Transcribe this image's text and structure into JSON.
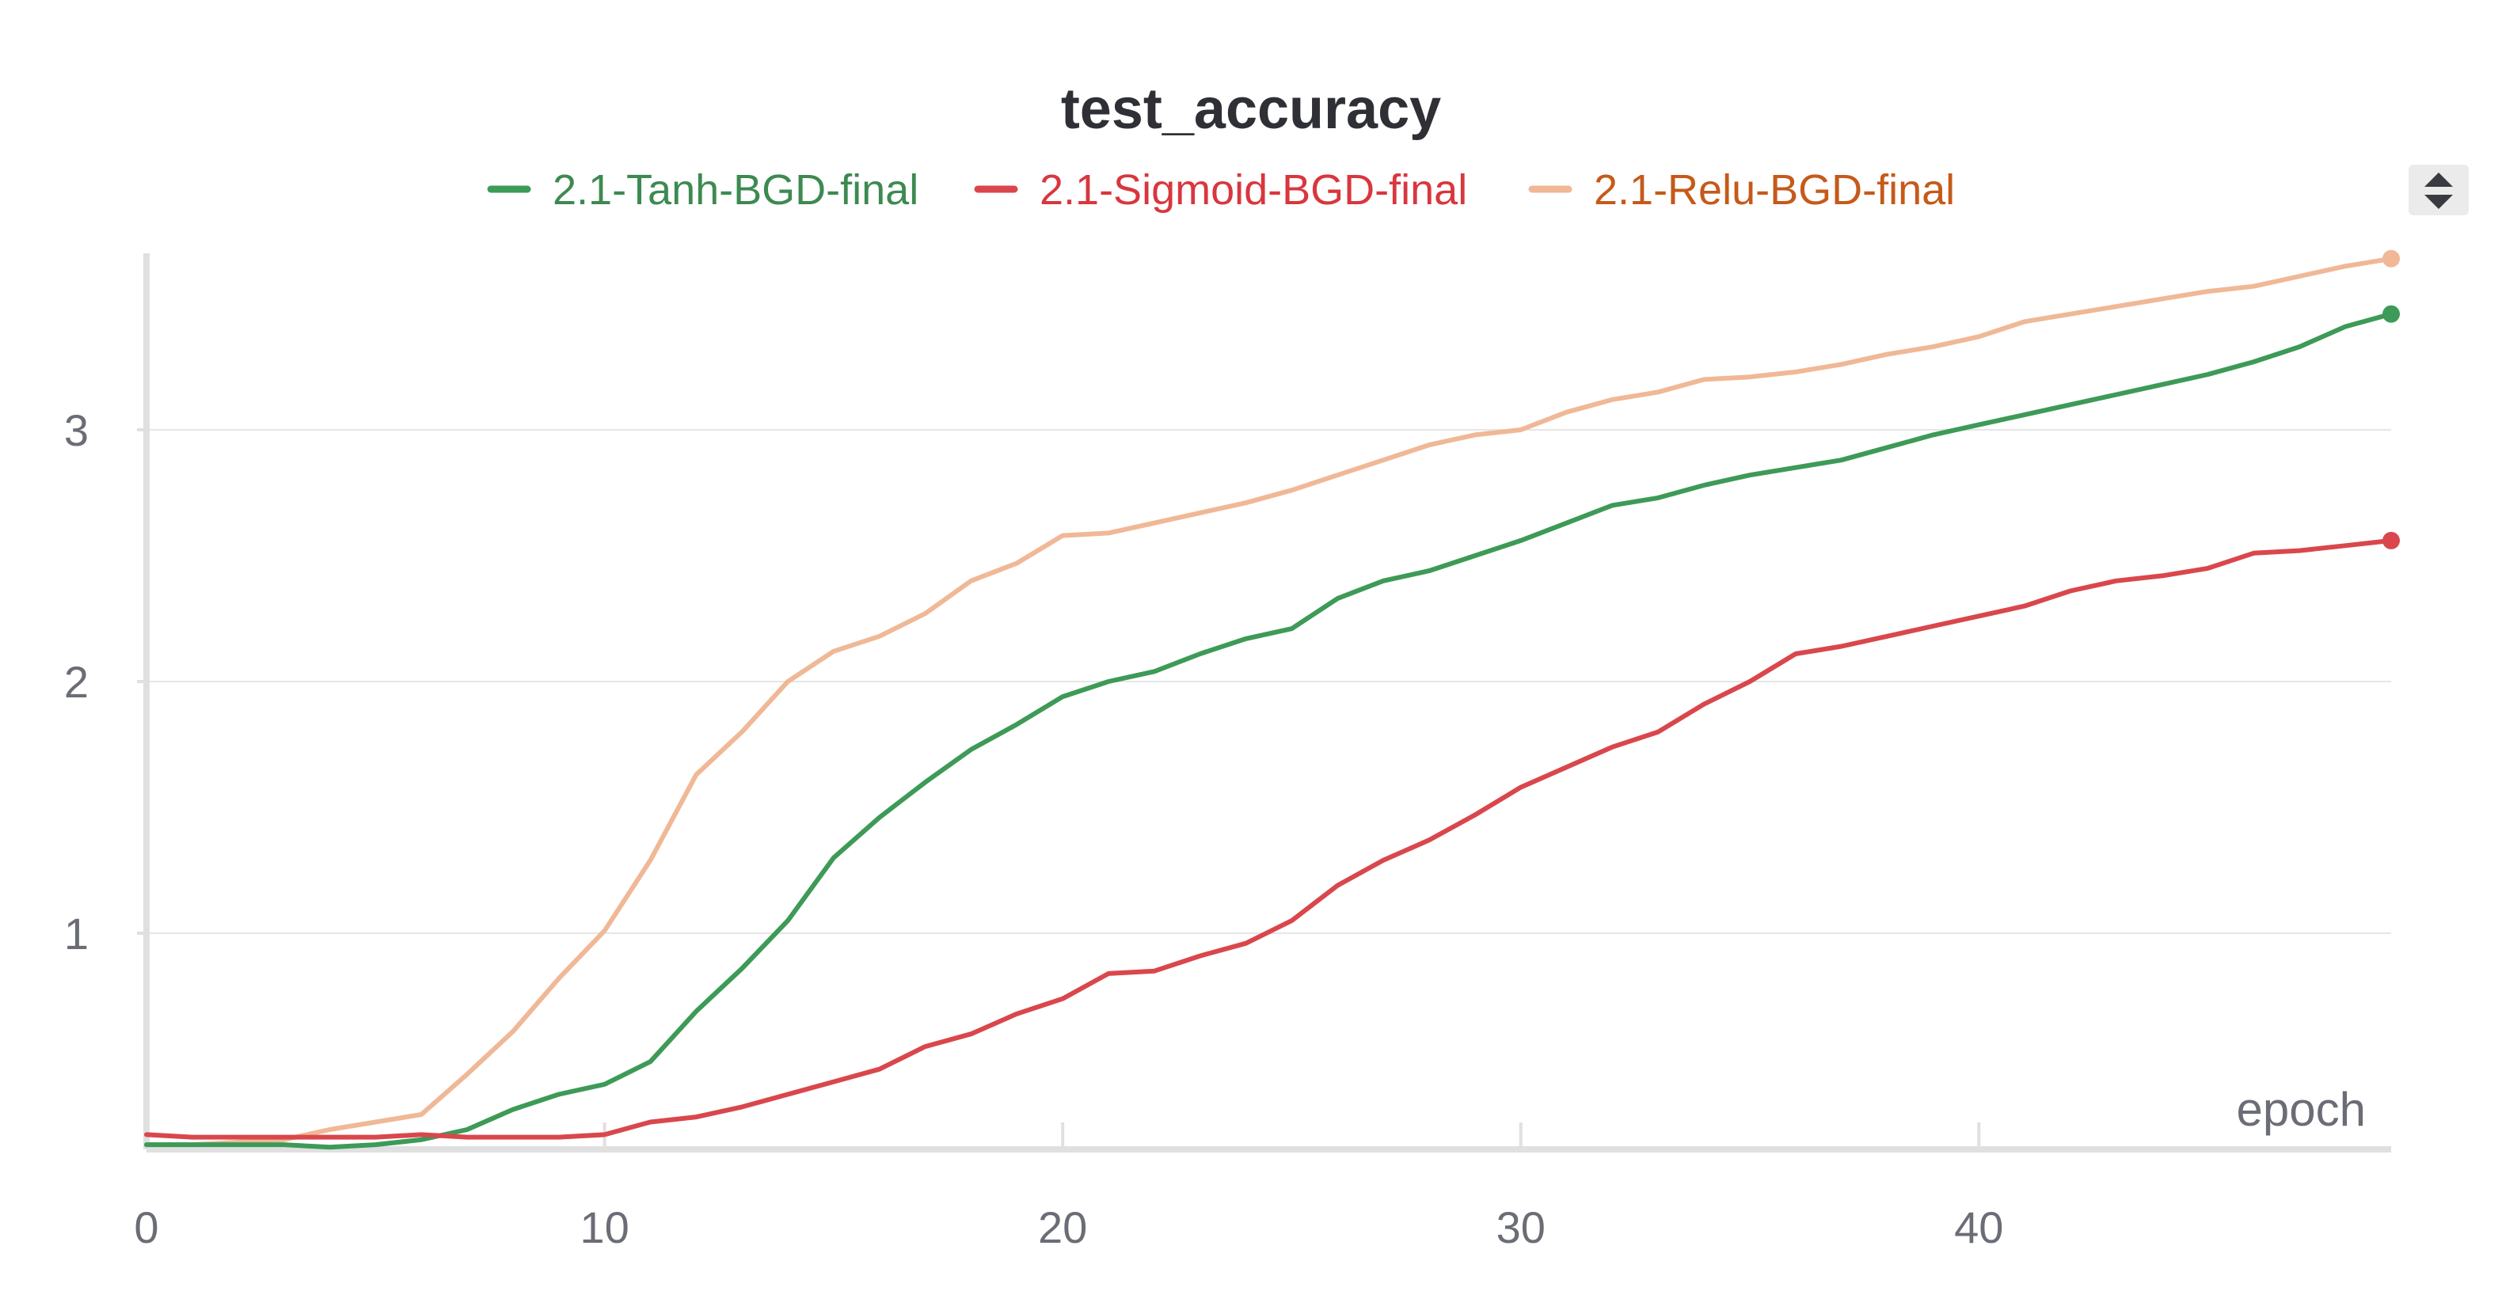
{
  "chart_data": {
    "type": "line",
    "title": "test_accuracy",
    "xlabel": "epoch",
    "ylabel": "",
    "xlim": [
      0,
      49
    ],
    "ylim": [
      0.13,
      3.7
    ],
    "x_ticks": [
      0,
      10,
      20,
      30,
      40
    ],
    "y_ticks": [
      1,
      2,
      3
    ],
    "legend_position": "top-center",
    "grid": true,
    "x": [
      0,
      1,
      2,
      3,
      4,
      5,
      6,
      7,
      8,
      9,
      10,
      11,
      12,
      13,
      14,
      15,
      16,
      17,
      18,
      19,
      20,
      21,
      22,
      23,
      24,
      25,
      26,
      27,
      28,
      29,
      30,
      31,
      32,
      33,
      34,
      35,
      36,
      37,
      38,
      39,
      40,
      41,
      42,
      43,
      44,
      45,
      46,
      47,
      48,
      49
    ],
    "series": [
      {
        "name": "2.1-Tanh-BGD-final",
        "color": "#3d9a57",
        "text_color": "#3d8a51",
        "values": [
          0.16,
          0.16,
          0.16,
          0.16,
          0.15,
          0.16,
          0.18,
          0.22,
          0.3,
          0.36,
          0.4,
          0.49,
          0.69,
          0.86,
          1.05,
          1.3,
          1.46,
          1.6,
          1.73,
          1.83,
          1.94,
          2.0,
          2.04,
          2.11,
          2.17,
          2.21,
          2.33,
          2.4,
          2.44,
          2.5,
          2.56,
          2.63,
          2.7,
          2.73,
          2.78,
          2.82,
          2.85,
          2.88,
          2.93,
          2.98,
          3.02,
          3.06,
          3.1,
          3.14,
          3.18,
          3.22,
          3.27,
          3.33,
          3.41,
          3.46
        ]
      },
      {
        "name": "2.1-Sigmoid-BGD-final",
        "color": "#d9474c",
        "text_color": "#d9363e",
        "values": [
          0.2,
          0.19,
          0.19,
          0.19,
          0.19,
          0.19,
          0.2,
          0.19,
          0.19,
          0.19,
          0.2,
          0.25,
          0.27,
          0.31,
          0.36,
          0.41,
          0.46,
          0.55,
          0.6,
          0.68,
          0.74,
          0.84,
          0.85,
          0.91,
          0.96,
          1.05,
          1.19,
          1.29,
          1.37,
          1.47,
          1.58,
          1.66,
          1.74,
          1.8,
          1.91,
          2.0,
          2.11,
          2.14,
          2.18,
          2.22,
          2.26,
          2.3,
          2.36,
          2.4,
          2.42,
          2.45,
          2.51,
          2.52,
          2.54,
          2.56
        ]
      },
      {
        "name": "2.1-Relu-BGD-final",
        "color": "#f0b896",
        "text_color": "#c55a1a",
        "values": [
          0.16,
          0.16,
          0.17,
          0.18,
          0.22,
          0.25,
          0.28,
          0.44,
          0.61,
          0.82,
          1.01,
          1.29,
          1.63,
          1.8,
          2.0,
          2.12,
          2.18,
          2.27,
          2.4,
          2.47,
          2.58,
          2.59,
          2.63,
          2.67,
          2.71,
          2.76,
          2.82,
          2.88,
          2.94,
          2.98,
          3.0,
          3.07,
          3.12,
          3.15,
          3.2,
          3.21,
          3.23,
          3.26,
          3.3,
          3.33,
          3.37,
          3.43,
          3.46,
          3.49,
          3.52,
          3.55,
          3.57,
          3.61,
          3.65,
          3.68
        ]
      }
    ]
  },
  "ui": {
    "sort_icon": "sort-updown-icon",
    "sort_icon_color": "#3a3b40",
    "sort_icon_bg": "#ebebeb"
  }
}
